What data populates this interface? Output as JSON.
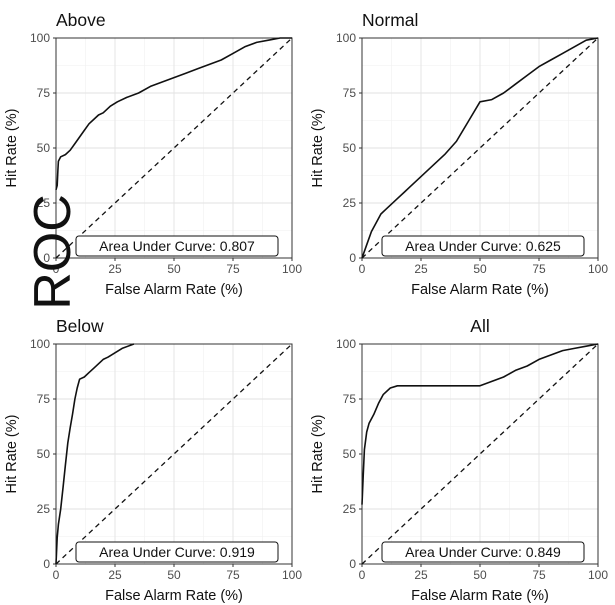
{
  "overlay_text": "ROC",
  "chart_data": [
    {
      "type": "line",
      "title": "Above",
      "title_align": "left",
      "xlabel": "False Alarm Rate (%)",
      "ylabel": "Hit Rate (%)",
      "xlim": [
        0,
        100
      ],
      "ylim": [
        0,
        100
      ],
      "xticks": [
        0,
        25,
        50,
        75,
        100
      ],
      "yticks": [
        0,
        25,
        50,
        75,
        100
      ],
      "grid": true,
      "annotation": "Area Under Curve: 0.807",
      "series": [
        {
          "style": "solid",
          "points": [
            [
              0,
              31
            ],
            [
              0.5,
              33
            ],
            [
              0.8,
              40
            ],
            [
              1,
              44
            ],
            [
              2,
              46
            ],
            [
              4,
              47
            ],
            [
              6,
              49
            ],
            [
              8,
              52
            ],
            [
              10,
              55
            ],
            [
              12,
              58
            ],
            [
              14,
              61
            ],
            [
              16,
              63
            ],
            [
              18,
              65
            ],
            [
              20,
              66
            ],
            [
              23,
              69
            ],
            [
              26,
              71
            ],
            [
              30,
              73
            ],
            [
              35,
              75
            ],
            [
              40,
              78
            ],
            [
              45,
              80
            ],
            [
              50,
              82
            ],
            [
              55,
              84
            ],
            [
              60,
              86
            ],
            [
              65,
              88
            ],
            [
              70,
              90
            ],
            [
              75,
              93
            ],
            [
              80,
              96
            ],
            [
              85,
              98
            ],
            [
              90,
              99
            ],
            [
              95,
              100
            ],
            [
              100,
              100
            ]
          ]
        },
        {
          "style": "dashed",
          "points": [
            [
              0,
              0
            ],
            [
              100,
              100
            ]
          ]
        }
      ]
    },
    {
      "type": "line",
      "title": "Normal",
      "title_align": "left",
      "xlabel": "False Alarm Rate (%)",
      "ylabel": "Hit Rate (%)",
      "xlim": [
        0,
        100
      ],
      "ylim": [
        0,
        100
      ],
      "xticks": [
        0,
        25,
        50,
        75,
        100
      ],
      "yticks": [
        0,
        25,
        50,
        75,
        100
      ],
      "grid": true,
      "annotation": "Area Under Curve: 0.625",
      "series": [
        {
          "style": "solid",
          "points": [
            [
              0,
              0
            ],
            [
              2,
              6
            ],
            [
              4,
              12
            ],
            [
              6,
              16
            ],
            [
              8,
              20
            ],
            [
              10,
              22
            ],
            [
              12,
              24
            ],
            [
              15,
              27
            ],
            [
              18,
              30
            ],
            [
              20,
              32
            ],
            [
              25,
              37
            ],
            [
              30,
              42
            ],
            [
              35,
              47
            ],
            [
              40,
              53
            ],
            [
              45,
              62
            ],
            [
              50,
              71
            ],
            [
              55,
              72
            ],
            [
              60,
              75
            ],
            [
              65,
              79
            ],
            [
              70,
              83
            ],
            [
              75,
              87
            ],
            [
              80,
              90
            ],
            [
              85,
              93
            ],
            [
              90,
              96
            ],
            [
              95,
              99
            ],
            [
              100,
              100
            ]
          ]
        },
        {
          "style": "dashed",
          "points": [
            [
              0,
              0
            ],
            [
              100,
              100
            ]
          ]
        }
      ]
    },
    {
      "type": "line",
      "title": "Below",
      "title_align": "left",
      "xlabel": "False Alarm Rate (%)",
      "ylabel": "Hit Rate (%)",
      "xlim": [
        0,
        100
      ],
      "ylim": [
        0,
        100
      ],
      "xticks": [
        0,
        25,
        50,
        75,
        100
      ],
      "yticks": [
        0,
        25,
        50,
        75,
        100
      ],
      "grid": true,
      "annotation": "Area Under Curve: 0.919",
      "series": [
        {
          "style": "solid",
          "points": [
            [
              0,
              0
            ],
            [
              0.5,
              12
            ],
            [
              1,
              18
            ],
            [
              2,
              25
            ],
            [
              3,
              35
            ],
            [
              4,
              45
            ],
            [
              5,
              55
            ],
            [
              6,
              62
            ],
            [
              7,
              68
            ],
            [
              8,
              75
            ],
            [
              9,
              80
            ],
            [
              10,
              84
            ],
            [
              12,
              85
            ],
            [
              14,
              87
            ],
            [
              16,
              89
            ],
            [
              18,
              91
            ],
            [
              20,
              93
            ],
            [
              22,
              94
            ],
            [
              25,
              96
            ],
            [
              28,
              98
            ],
            [
              33,
              100
            ]
          ]
        },
        {
          "style": "dashed",
          "points": [
            [
              0,
              0
            ],
            [
              100,
              100
            ]
          ]
        }
      ]
    },
    {
      "type": "line",
      "title": "All",
      "title_align": "center",
      "xlabel": "False Alarm Rate (%)",
      "ylabel": "Hit Rate (%)",
      "xlim": [
        0,
        100
      ],
      "ylim": [
        0,
        100
      ],
      "xticks": [
        0,
        25,
        50,
        75,
        100
      ],
      "yticks": [
        0,
        25,
        50,
        75,
        100
      ],
      "grid": true,
      "annotation": "Area Under Curve: 0.849",
      "series": [
        {
          "style": "solid",
          "points": [
            [
              0,
              27
            ],
            [
              0.5,
              40
            ],
            [
              1,
              52
            ],
            [
              2,
              60
            ],
            [
              3,
              64
            ],
            [
              5,
              68
            ],
            [
              7,
              73
            ],
            [
              9,
              77
            ],
            [
              12,
              80
            ],
            [
              15,
              81
            ],
            [
              20,
              81
            ],
            [
              30,
              81
            ],
            [
              40,
              81
            ],
            [
              50,
              81
            ],
            [
              55,
              83
            ],
            [
              60,
              85
            ],
            [
              65,
              88
            ],
            [
              70,
              90
            ],
            [
              75,
              93
            ],
            [
              80,
              95
            ],
            [
              85,
              97
            ],
            [
              90,
              98
            ],
            [
              95,
              99
            ],
            [
              100,
              100
            ]
          ]
        },
        {
          "style": "dashed",
          "points": [
            [
              0,
              0
            ],
            [
              100,
              100
            ]
          ]
        }
      ]
    }
  ]
}
